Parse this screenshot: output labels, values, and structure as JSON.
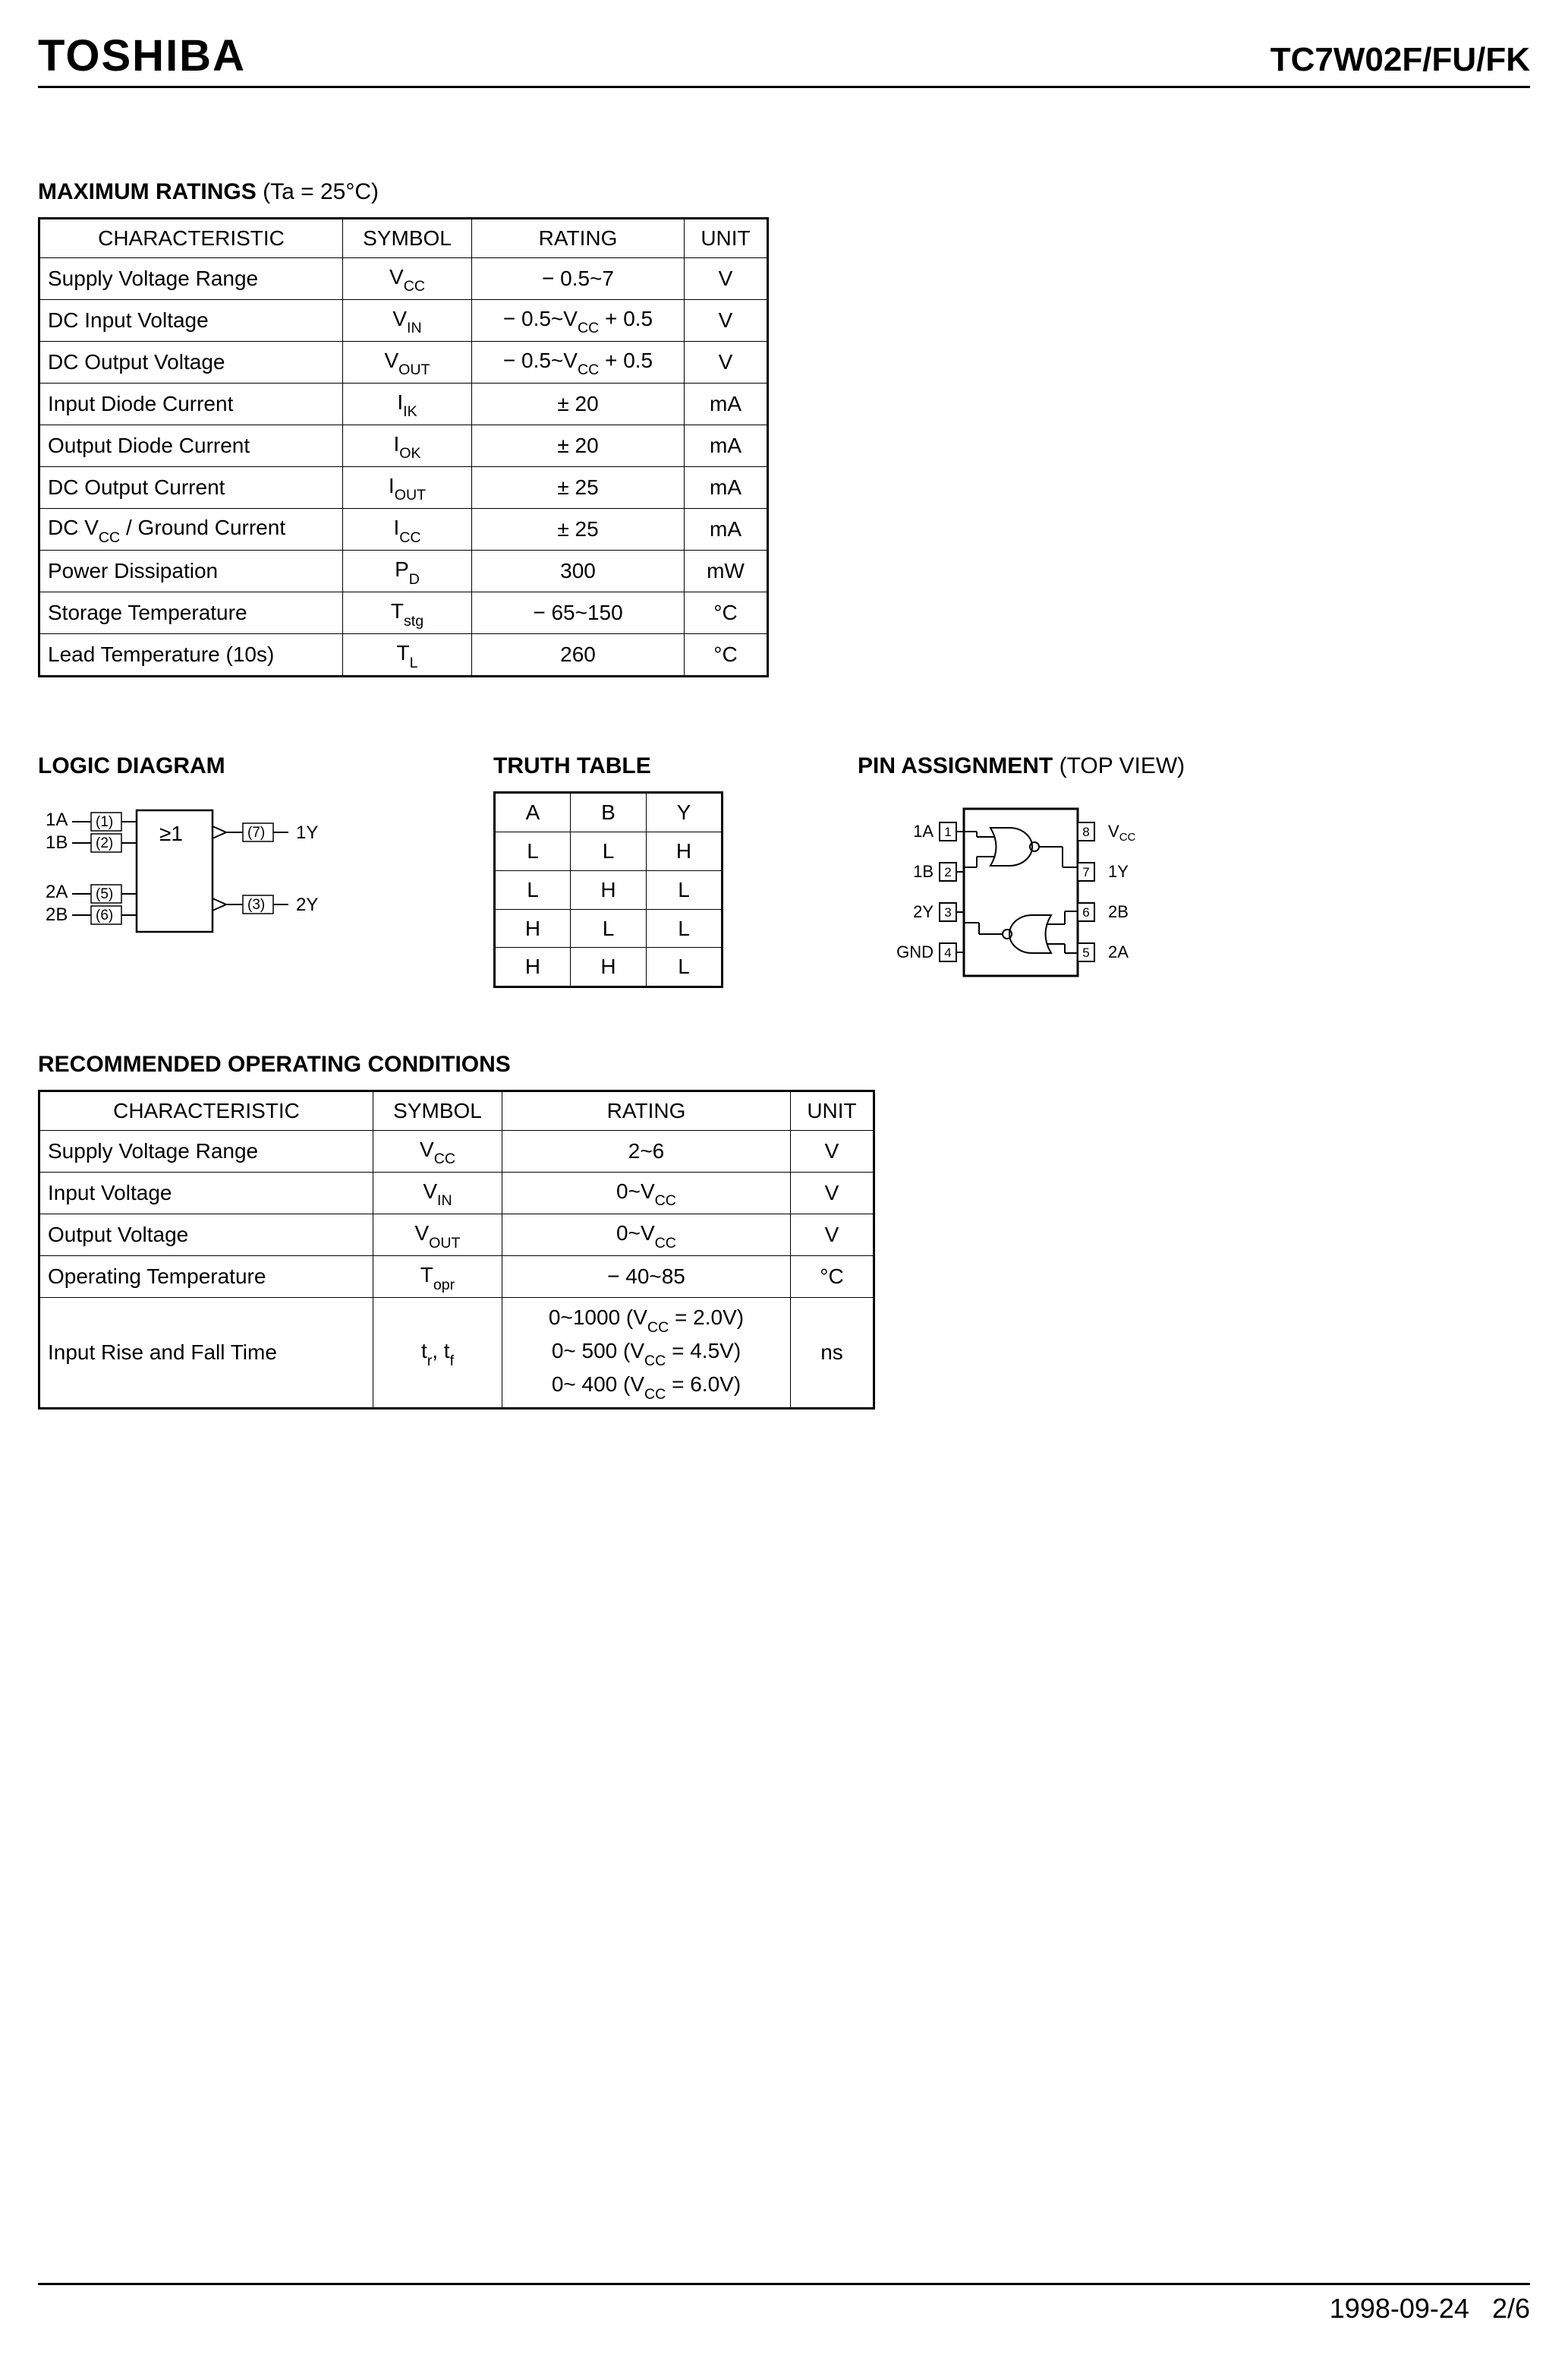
{
  "header": {
    "brand": "TOSHIBA",
    "part": "TC7W02F/FU/FK"
  },
  "max_ratings": {
    "title": "MAXIMUM RATINGS",
    "condition": "(Ta = 25°C)",
    "columns": [
      "CHARACTERISTIC",
      "SYMBOL",
      "RATING",
      "UNIT"
    ],
    "rows": [
      {
        "char": "Supply Voltage Range",
        "sym": "V",
        "sub": "CC",
        "rating": "− 0.5~7",
        "unit": "V"
      },
      {
        "char": "DC Input Voltage",
        "sym": "V",
        "sub": "IN",
        "rating": "− 0.5~V_CC + 0.5",
        "unit": "V"
      },
      {
        "char": "DC Output Voltage",
        "sym": "V",
        "sub": "OUT",
        "rating": "− 0.5~V_CC + 0.5",
        "unit": "V"
      },
      {
        "char": "Input Diode Current",
        "sym": "I",
        "sub": "IK",
        "rating": "± 20",
        "unit": "mA"
      },
      {
        "char": "Output Diode Current",
        "sym": "I",
        "sub": "OK",
        "rating": "± 20",
        "unit": "mA"
      },
      {
        "char": "DC Output Current",
        "sym": "I",
        "sub": "OUT",
        "rating": "± 25",
        "unit": "mA"
      },
      {
        "char": "DC V_CC / Ground Current",
        "sym": "I",
        "sub": "CC",
        "rating": "± 25",
        "unit": "mA"
      },
      {
        "char": "Power Dissipation",
        "sym": "P",
        "sub": "D",
        "rating": "300",
        "unit": "mW"
      },
      {
        "char": "Storage Temperature",
        "sym": "T",
        "sub": "stg",
        "rating": "− 65~150",
        "unit": "°C"
      },
      {
        "char": "Lead Temperature (10s)",
        "sym": "T",
        "sub": "L",
        "rating": "260",
        "unit": "°C"
      }
    ]
  },
  "logic_diagram": {
    "title": "LOGIC DIAGRAM",
    "pins": {
      "in1A": "1A",
      "in1A_num": "(1)",
      "in1B": "1B",
      "in1B_num": "(2)",
      "in2A": "2A",
      "in2A_num": "(5)",
      "in2B": "2B",
      "in2B_num": "(6)",
      "gate": "≥1",
      "out1_num": "(7)",
      "out1": "1Y",
      "out2_num": "(3)",
      "out2": "2Y"
    }
  },
  "truth": {
    "title": "TRUTH TABLE",
    "columns": [
      "A",
      "B",
      "Y"
    ],
    "rows": [
      [
        "L",
        "L",
        "H"
      ],
      [
        "L",
        "H",
        "L"
      ],
      [
        "H",
        "L",
        "L"
      ],
      [
        "H",
        "H",
        "L"
      ]
    ]
  },
  "pin_assignment": {
    "title": "PIN ASSIGNMENT",
    "note": "(TOP VIEW)",
    "left": [
      {
        "num": "1",
        "label": "1A"
      },
      {
        "num": "2",
        "label": "1B"
      },
      {
        "num": "3",
        "label": "2Y"
      },
      {
        "num": "4",
        "label": "GND"
      }
    ],
    "right": [
      {
        "num": "8",
        "label": "V_CC"
      },
      {
        "num": "7",
        "label": "1Y"
      },
      {
        "num": "6",
        "label": "2B"
      },
      {
        "num": "5",
        "label": "2A"
      }
    ]
  },
  "rec": {
    "title": "RECOMMENDED OPERATING CONDITIONS",
    "columns": [
      "CHARACTERISTIC",
      "SYMBOL",
      "RATING",
      "UNIT"
    ],
    "rows": [
      {
        "char": "Supply Voltage Range",
        "sym": "V",
        "sub": "CC",
        "rating": "2~6",
        "unit": "V"
      },
      {
        "char": "Input Voltage",
        "sym": "V",
        "sub": "IN",
        "rating": "0~V_CC",
        "unit": "V"
      },
      {
        "char": "Output Voltage",
        "sym": "V",
        "sub": "OUT",
        "rating": "0~V_CC",
        "unit": "V"
      },
      {
        "char": "Operating Temperature",
        "sym": "T",
        "sub": "opr",
        "rating": "− 40~85",
        "unit": "°C"
      },
      {
        "char": "Input Rise and Fall Time",
        "sym_plain": "t_r, t_f",
        "rating3": [
          "0~1000  (V_CC = 2.0V)",
          "0~  500  (V_CC = 4.5V)",
          "0~  400  (V_CC = 6.0V)"
        ],
        "unit": "ns"
      }
    ]
  },
  "footer": {
    "date": "1998-09-24",
    "page": "2/6"
  },
  "colors": {
    "text": "#000000",
    "bg": "#ffffff"
  }
}
